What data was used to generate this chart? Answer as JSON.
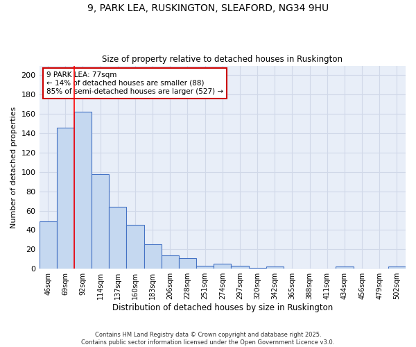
{
  "title1": "9, PARK LEA, RUSKINGTON, SLEAFORD, NG34 9HU",
  "title2": "Size of property relative to detached houses in Ruskington",
  "xlabel": "Distribution of detached houses by size in Ruskington",
  "ylabel": "Number of detached properties",
  "categories": [
    "46sqm",
    "69sqm",
    "92sqm",
    "114sqm",
    "137sqm",
    "160sqm",
    "183sqm",
    "206sqm",
    "228sqm",
    "251sqm",
    "274sqm",
    "297sqm",
    "320sqm",
    "342sqm",
    "365sqm",
    "388sqm",
    "411sqm",
    "434sqm",
    "456sqm",
    "479sqm",
    "502sqm"
  ],
  "values": [
    49,
    146,
    162,
    98,
    64,
    45,
    25,
    14,
    11,
    3,
    5,
    3,
    1,
    2,
    0,
    0,
    0,
    2,
    0,
    0,
    2
  ],
  "bar_color": "#c5d8f0",
  "bar_edge_color": "#4472c4",
  "bar_linewidth": 0.8,
  "red_line_x": 1.5,
  "annotation_text": "9 PARK LEA: 77sqm\n← 14% of detached houses are smaller (88)\n85% of semi-detached houses are larger (527) →",
  "annotation_box_color": "#ffffff",
  "annotation_box_edge": "#cc0000",
  "ylim": [
    0,
    210
  ],
  "yticks": [
    0,
    20,
    40,
    60,
    80,
    100,
    120,
    140,
    160,
    180,
    200
  ],
  "grid_color": "#d0d8e8",
  "background_color": "#e8eef8",
  "footer1": "Contains HM Land Registry data © Crown copyright and database right 2025.",
  "footer2": "Contains public sector information licensed under the Open Government Licence v3.0."
}
